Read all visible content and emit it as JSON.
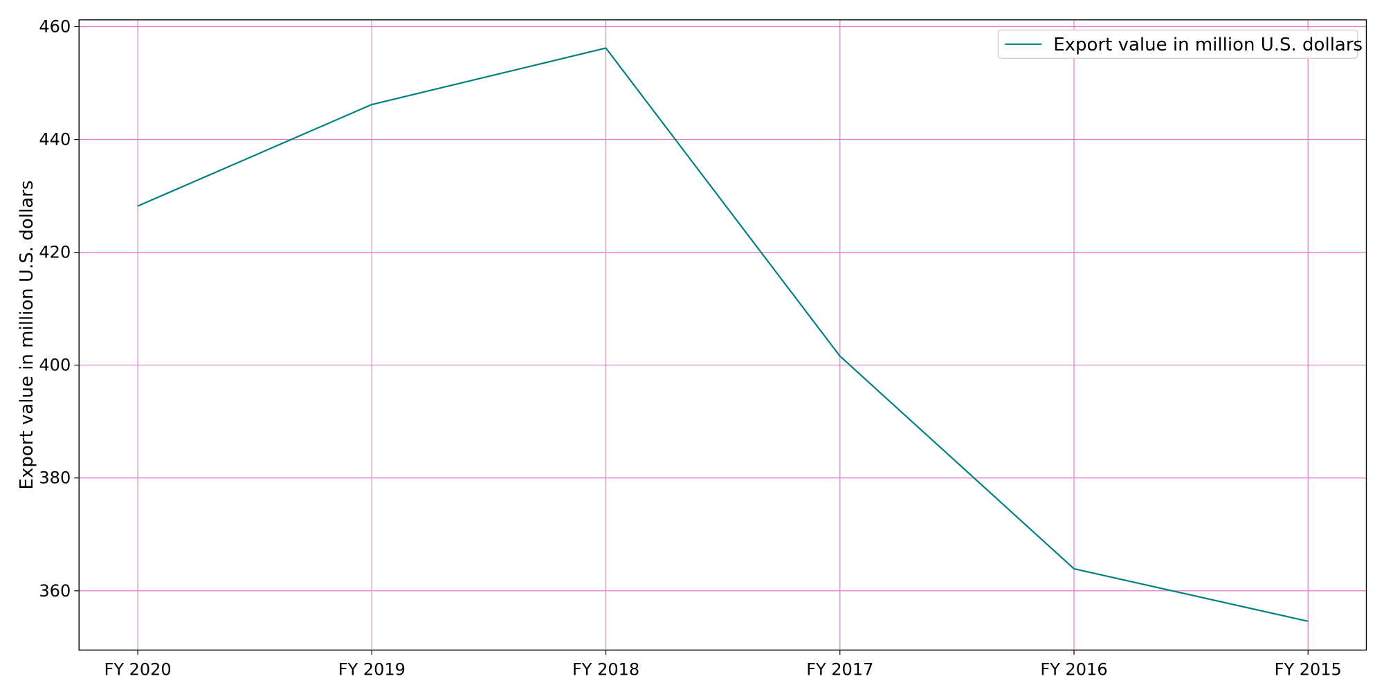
{
  "chart_data": {
    "type": "line",
    "title": "",
    "xlabel": "",
    "ylabel": "Export value in million U.S. dollars",
    "categories": [
      "FY 2020",
      "FY 2019",
      "FY 2018",
      "FY 2017",
      "FY 2016",
      "FY 2015"
    ],
    "series": [
      {
        "name": "Export value in million U.S. dollars",
        "values": [
          428.2,
          446.2,
          456.2,
          401.6,
          363.9,
          354.6
        ],
        "color": "#008080"
      }
    ],
    "ylim": [
      349.5,
      461.2
    ],
    "yticks": [
      360,
      380,
      400,
      420,
      440,
      460
    ],
    "grid": true,
    "grid_color": "#e879c9",
    "legend_position": "top-right"
  }
}
